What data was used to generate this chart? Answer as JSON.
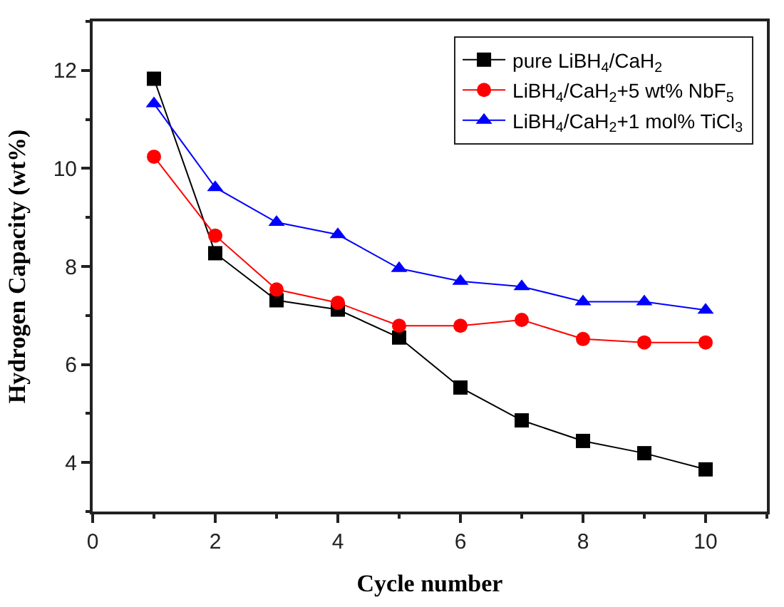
{
  "chart_data": {
    "type": "line",
    "xlabel": "Cycle number",
    "ylabel": "Hydrogen Capacity (wt%)",
    "x": [
      1,
      2,
      3,
      4,
      5,
      6,
      7,
      8,
      9,
      10
    ],
    "series": [
      {
        "name": "pure LiBH$_{4}$/CaH$_{2}$",
        "color": "#000000",
        "marker": "square",
        "values": [
          11.83,
          8.27,
          7.31,
          7.12,
          6.55,
          5.53,
          4.86,
          4.44,
          4.19,
          3.86
        ]
      },
      {
        "name": "LiBH$_{4}$/CaH$_{2}$+5 wt% NbF$_{5}$",
        "color": "#ff0000",
        "marker": "circle",
        "values": [
          10.24,
          8.63,
          7.53,
          7.26,
          6.79,
          6.79,
          6.91,
          6.52,
          6.45,
          6.45
        ]
      },
      {
        "name": "LiBH$_{4}$/CaH$_{2}$+1 mol% TiCl$_{3}$",
        "color": "#0000ff",
        "marker": "triangle",
        "values": [
          11.32,
          9.61,
          8.9,
          8.65,
          7.96,
          7.7,
          7.59,
          7.28,
          7.28,
          7.11
        ]
      }
    ],
    "xlim": [
      0,
      11
    ],
    "xticks": [
      0,
      2,
      4,
      6,
      8,
      10
    ],
    "ylim": [
      3,
      13
    ],
    "yticks": [
      4,
      6,
      8,
      10,
      12
    ],
    "legend": "top right",
    "line_style": "solid"
  }
}
